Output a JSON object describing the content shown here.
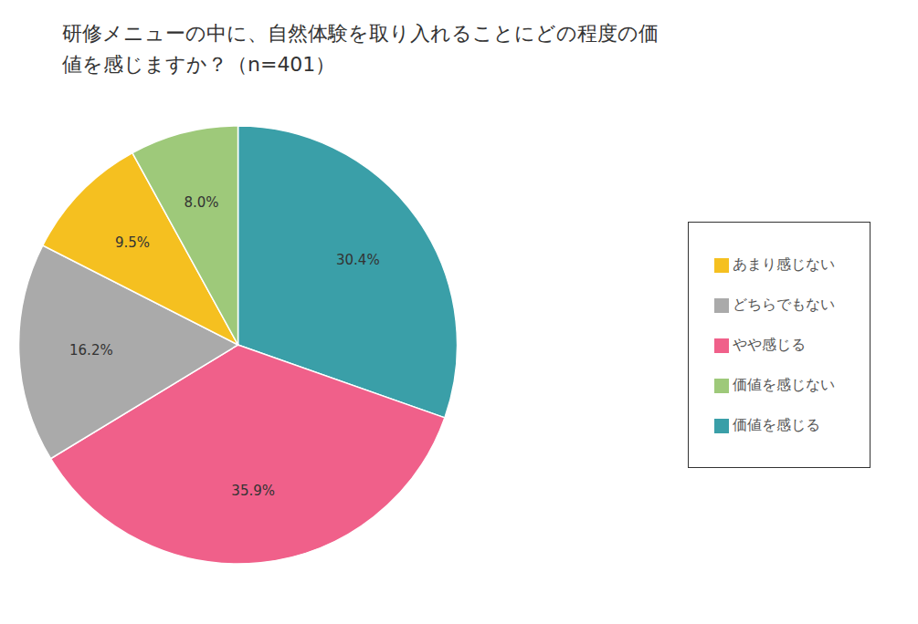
{
  "chart_data": {
    "type": "pie",
    "title": "研修メニューの中に、自然体験を取り入れることにどの程度の価\n値を感じますか？（n=401）",
    "categories": [
      "価値を感じる",
      "やや感じる",
      "どちらでもない",
      "あまり感じない",
      "価値を感じない"
    ],
    "values": [
      30.4,
      35.9,
      16.2,
      9.5,
      8.0
    ],
    "value_labels": [
      "30.4%",
      "35.9%",
      "16.2%",
      "9.5%",
      "8.0%"
    ],
    "colors": [
      "#3a9fa8",
      "#f0608a",
      "#aaaaaa",
      "#f5c020",
      "#9ec97a"
    ],
    "data_labels": true,
    "legend": "right"
  }
}
